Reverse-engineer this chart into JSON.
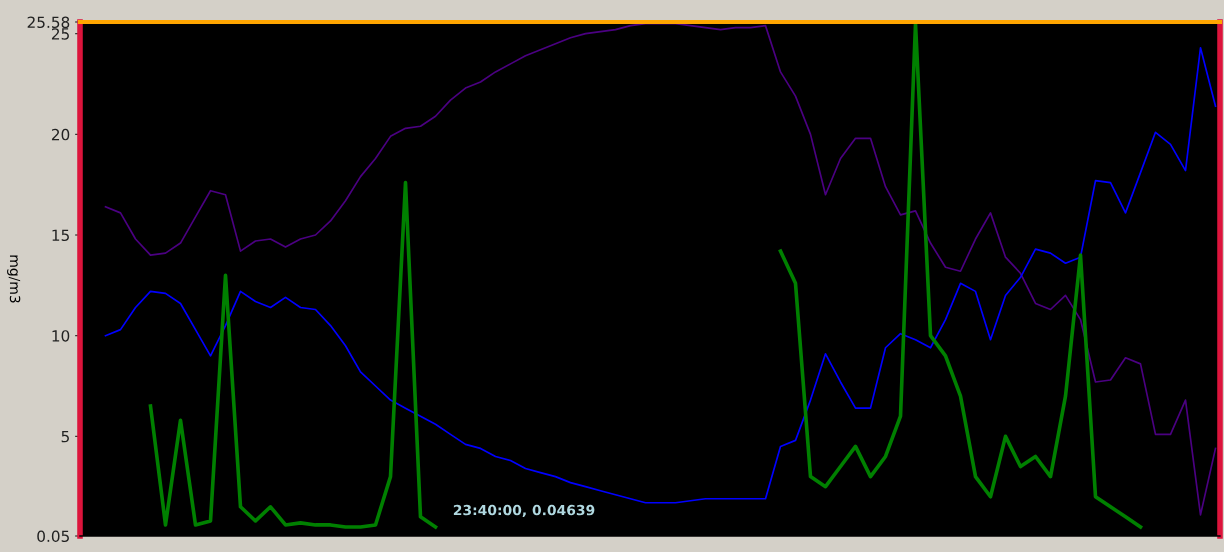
{
  "chart_data": {
    "type": "line",
    "ylabel": "mg/m3",
    "categories": [
      null,
      null,
      null,
      null,
      null,
      null,
      null,
      null,
      null,
      null,
      null,
      null,
      null,
      null,
      null,
      null,
      null,
      null,
      null,
      null,
      null,
      null,
      null,
      null,
      null,
      null,
      null,
      null,
      null,
      null,
      null,
      null,
      null,
      null,
      null,
      null,
      null,
      null,
      null,
      null,
      null,
      null,
      null,
      null,
      null,
      null,
      null,
      null,
      null,
      null,
      null,
      null,
      null,
      null,
      null,
      null,
      null,
      null,
      null,
      null,
      null,
      null,
      null,
      null,
      null,
      null,
      null,
      null,
      null,
      null,
      null,
      null,
      null,
      null,
      null
    ],
    "series": [
      {
        "color": "#4b0082",
        "values": [
          16.4,
          16.1,
          14.8,
          14.0,
          14.1,
          14.6,
          15.9,
          17.2,
          17.0,
          14.2,
          14.7,
          14.8,
          14.4,
          14.8,
          15.0,
          15.7,
          16.7,
          17.9,
          18.8,
          19.9,
          20.3,
          20.4,
          20.9,
          21.7,
          22.3,
          22.6,
          23.1,
          23.5,
          23.9,
          24.2,
          24.5,
          24.8,
          25.0,
          25.1,
          25.2,
          25.4,
          25.5,
          25.5,
          25.5,
          25.4,
          25.3,
          25.2,
          25.3,
          25.3,
          25.4,
          23.1,
          21.9,
          20.0,
          17.0,
          18.8,
          19.8,
          19.8,
          17.4,
          16.0,
          16.2,
          14.6,
          13.4,
          13.2,
          14.8,
          16.1,
          13.9,
          13.1,
          11.6,
          11.3,
          12.0,
          10.8,
          7.7,
          7.8,
          8.9,
          8.6,
          5.1,
          5.1,
          6.8,
          1.1,
          4.4
        ]
      },
      {
        "color": "#0000ff",
        "values": [
          10.0,
          10.3,
          11.4,
          12.2,
          12.1,
          11.6,
          10.3,
          9.0,
          10.5,
          12.2,
          11.7,
          11.4,
          11.9,
          11.4,
          11.3,
          10.5,
          9.5,
          8.2,
          7.5,
          6.8,
          6.4,
          6.0,
          5.6,
          5.1,
          4.6,
          4.4,
          4.0,
          3.8,
          3.4,
          3.2,
          3.0,
          2.7,
          2.5,
          2.3,
          2.1,
          1.9,
          1.7,
          1.7,
          1.7,
          1.8,
          1.9,
          1.9,
          1.9,
          1.9,
          1.9,
          4.5,
          4.8,
          6.8,
          9.1,
          7.7,
          6.4,
          6.4,
          9.4,
          10.1,
          9.8,
          9.4,
          10.8,
          12.6,
          12.2,
          9.8,
          12.0,
          12.9,
          14.3,
          14.1,
          13.6,
          13.9,
          17.7,
          17.6,
          16.1,
          18.1,
          20.1,
          19.5,
          18.2,
          24.3,
          21.4
        ]
      },
      {
        "color": "#008000",
        "values": [
          null,
          null,
          null,
          6.5,
          0.6,
          5.8,
          0.6,
          0.8,
          13.0,
          1.5,
          0.8,
          1.5,
          0.6,
          0.7,
          0.6,
          0.6,
          0.5,
          0.5,
          0.6,
          3.0,
          17.6,
          1.0,
          0.5,
          null,
          null,
          null,
          null,
          null,
          null,
          null,
          null,
          null,
          null,
          null,
          null,
          null,
          null,
          null,
          null,
          null,
          null,
          null,
          null,
          null,
          null,
          14.2,
          12.6,
          3.0,
          2.5,
          3.5,
          4.5,
          3.0,
          4.0,
          6.0,
          25.5,
          10.0,
          9.0,
          7.0,
          3.0,
          2.0,
          5.0,
          3.5,
          4.0,
          3.0,
          7.0,
          14.0,
          2.0,
          1.5,
          1.0,
          0.5,
          null,
          null,
          null,
          null,
          null
        ]
      }
    ],
    "ylim": [
      0.05,
      25.58
    ],
    "yticks": [
      0.05,
      5,
      10,
      15,
      20,
      25,
      25.58
    ],
    "tick_labels": "y",
    "grid": false,
    "marker": "none",
    "line_style": "solid",
    "annotations": [
      "23:40:00, 0.04639"
    ]
  }
}
